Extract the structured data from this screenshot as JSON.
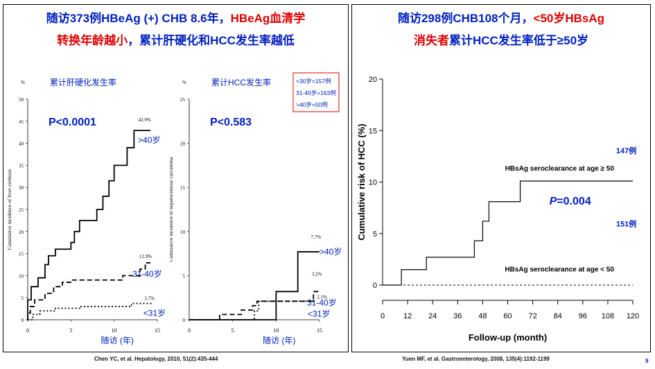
{
  "left_panel": {
    "title_line1_a": "随访373例HBeAg (+) CHB 8.6年，",
    "title_line1_b": "HBeAg血清学",
    "title_line2_a": "转换年龄越小",
    "title_line2_b": "，累计肝硬化和HCC发生率越低",
    "citation": "Chen YC, et al. Hepatology, 2010, 51(2):435-444"
  },
  "right_panel": {
    "title_line1_a": "随访298例CHB108个月，",
    "title_line1_b": "<50岁HBsAg",
    "title_line2_a": "消失者",
    "title_line2_b": "累计HCC发生率低于≥50岁",
    "citation": "Yuen MF, et al. Gastroenterology, 2008, 135(4):1192-1199"
  },
  "page_number": "9",
  "colors": {
    "blue": "#0020c0",
    "red": "#e00000",
    "black": "#000000"
  },
  "chart_data": [
    {
      "type": "line",
      "title": "累计肝硬化发生率",
      "unit": "%",
      "ylabel": "Cumulative incidence of liver cirrhosis",
      "xlabel": "随访 (年)",
      "pvalue": "P<0.0001",
      "xlim": [
        0,
        15
      ],
      "ylim": [
        0,
        50
      ],
      "xticks": [
        0,
        5,
        10,
        15
      ],
      "yticks": [
        0,
        5,
        10,
        15,
        20,
        25,
        30,
        35,
        40,
        45,
        50
      ],
      "series": [
        {
          "name": ">40岁",
          "style": "solid",
          "end_label": "42.9%",
          "points": [
            [
              0,
              0
            ],
            [
              0,
              4.5
            ],
            [
              0.4,
              4.5
            ],
            [
              0.4,
              7.5
            ],
            [
              1.2,
              7.5
            ],
            [
              1.2,
              9.5
            ],
            [
              2,
              9.5
            ],
            [
              2,
              12.5
            ],
            [
              2.4,
              12.5
            ],
            [
              2.4,
              14.5
            ],
            [
              3.2,
              14.5
            ],
            [
              3.2,
              16
            ],
            [
              5,
              16
            ],
            [
              5,
              17.5
            ],
            [
              5.4,
              17.5
            ],
            [
              5.4,
              20
            ],
            [
              6,
              20
            ],
            [
              6,
              22.5
            ],
            [
              8,
              22.5
            ],
            [
              8,
              25
            ],
            [
              8.7,
              25
            ],
            [
              8.7,
              28
            ],
            [
              9.4,
              28
            ],
            [
              9.4,
              31.5
            ],
            [
              10,
              31.5
            ],
            [
              10,
              35
            ],
            [
              11.5,
              35
            ],
            [
              11.5,
              39
            ],
            [
              12.3,
              39
            ],
            [
              12.3,
              42.9
            ],
            [
              14.2,
              42.9
            ]
          ]
        },
        {
          "name": "31-40岁",
          "style": "dashed",
          "end_label": "12.9%",
          "points": [
            [
              0,
              0
            ],
            [
              0,
              1.5
            ],
            [
              0.3,
              1.5
            ],
            [
              0.3,
              3
            ],
            [
              0.8,
              3
            ],
            [
              0.8,
              4.5
            ],
            [
              2,
              4.5
            ],
            [
              2,
              6
            ],
            [
              3,
              6
            ],
            [
              3,
              7.5
            ],
            [
              4,
              7.5
            ],
            [
              4,
              8.5
            ],
            [
              5,
              8.5
            ],
            [
              5,
              9
            ],
            [
              11,
              9
            ],
            [
              11,
              10
            ],
            [
              13,
              10
            ],
            [
              13,
              11.5
            ],
            [
              13.6,
              11.5
            ],
            [
              13.6,
              12.9
            ],
            [
              14.2,
              12.9
            ]
          ]
        },
        {
          "name": "<31岁",
          "style": "dotted",
          "end_label": "3.7%",
          "points": [
            [
              0,
              0
            ],
            [
              0.6,
              0
            ],
            [
              0.6,
              1.2
            ],
            [
              1.4,
              1.2
            ],
            [
              1.4,
              2
            ],
            [
              3.2,
              2
            ],
            [
              3.2,
              2.6
            ],
            [
              6,
              2.6
            ],
            [
              6,
              3
            ],
            [
              12,
              3
            ],
            [
              12,
              3.7
            ],
            [
              14.5,
              3.7
            ]
          ]
        }
      ]
    },
    {
      "type": "line",
      "title": "累计HCC发生率",
      "unit": "%",
      "ylabel": "Cumulative incidence of hepatocellular carcinoma",
      "xlabel": "随访 (年)",
      "pvalue": "P<0.583",
      "legend": [
        "<30岁=157例",
        "31-40岁=163例",
        ">40岁=50例"
      ],
      "xlim": [
        0,
        15
      ],
      "ylim": [
        0,
        25
      ],
      "xticks": [
        0,
        5,
        10,
        15
      ],
      "yticks": [
        0,
        5,
        10,
        15,
        20,
        25
      ],
      "series": [
        {
          "name": ">40岁",
          "style": "solid",
          "end_label": "7.7%",
          "points": [
            [
              0,
              0
            ],
            [
              10,
              0
            ],
            [
              10,
              3.2
            ],
            [
              12.5,
              3.2
            ],
            [
              12.5,
              7.7
            ],
            [
              15,
              7.7
            ]
          ]
        },
        {
          "name": "31-40岁",
          "style": "dashed",
          "end_label": "3.2%",
          "points": [
            [
              0,
              0
            ],
            [
              3.5,
              0
            ],
            [
              3.5,
              0.6
            ],
            [
              6,
              0.6
            ],
            [
              6,
              1.1
            ],
            [
              7.3,
              1.1
            ],
            [
              7.3,
              1.6
            ],
            [
              7.8,
              1.6
            ],
            [
              7.8,
              2.1
            ],
            [
              14.3,
              2.1
            ],
            [
              14.3,
              3.2
            ],
            [
              15,
              3.2
            ]
          ]
        },
        {
          "name": "<31岁",
          "style": "dotted",
          "end_label": "2.1%",
          "points": [
            [
              0,
              0
            ],
            [
              7.5,
              0
            ],
            [
              7.5,
              1
            ],
            [
              8,
              1
            ],
            [
              8,
              2.1
            ],
            [
              14.6,
              2.1
            ]
          ]
        }
      ]
    },
    {
      "type": "line",
      "ylabel": "Cumulative risk of HCC (%)",
      "xlabel": "Follow-up (month)",
      "pvalue_letter": "P",
      "pvalue_rest": "=0.004",
      "xlim": [
        0,
        120
      ],
      "ylim": [
        0,
        20
      ],
      "xticks": [
        0,
        12,
        24,
        36,
        48,
        60,
        72,
        84,
        96,
        108,
        120
      ],
      "yticks": [
        0,
        5,
        10,
        15,
        20
      ],
      "series": [
        {
          "name": "HBsAg seroclearance at age ≥ 50",
          "count": "147例",
          "style": "solid",
          "points": [
            [
              0,
              0
            ],
            [
              9,
              0
            ],
            [
              9,
              1.5
            ],
            [
              21,
              1.5
            ],
            [
              21,
              2.7
            ],
            [
              44,
              2.7
            ],
            [
              44,
              4.3
            ],
            [
              48,
              4.3
            ],
            [
              48,
              6.2
            ],
            [
              51,
              6.2
            ],
            [
              51,
              8.1
            ],
            [
              66,
              8.1
            ],
            [
              66,
              10.1
            ],
            [
              120,
              10.1
            ]
          ]
        },
        {
          "name": "HBsAg seroclearance at age < 50",
          "count": "151例",
          "style": "dashed",
          "points": [
            [
              0,
              0
            ],
            [
              120,
              0
            ]
          ]
        }
      ]
    }
  ]
}
